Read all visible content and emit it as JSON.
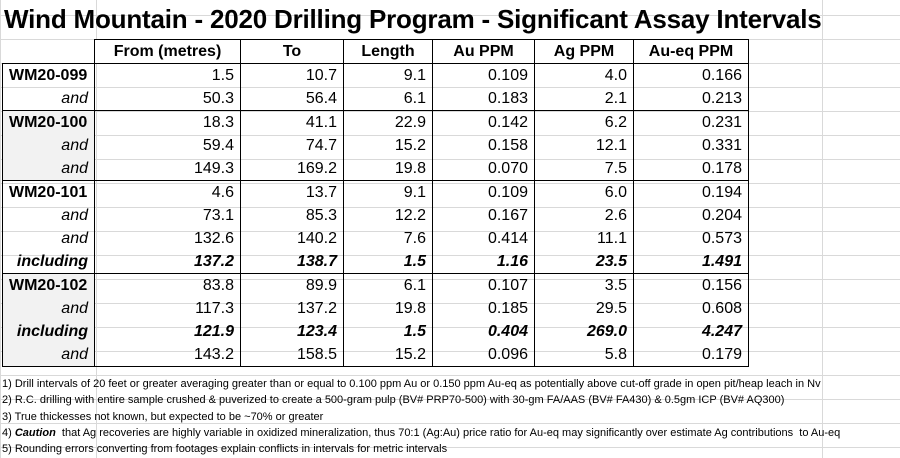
{
  "title": "Wind Mountain - 2020 Drilling Program - Significant Assay Intervals",
  "headers": [
    "",
    "From (metres)",
    "To",
    "Length",
    "Au PPM",
    "Ag PPM",
    "Au-eq PPM"
  ],
  "rows": [
    {
      "label": "WM20-099",
      "kind": "hole",
      "from": "1.5",
      "to": "10.7",
      "length": "9.1",
      "au": "0.109",
      "ag": "4.0",
      "aueq": "0.166"
    },
    {
      "label": "and",
      "kind": "sub",
      "from": "50.3",
      "to": "56.4",
      "length": "6.1",
      "au": "0.183",
      "ag": "2.1",
      "aueq": "0.213"
    },
    {
      "label": "WM20-100",
      "kind": "hole",
      "from": "18.3",
      "to": "41.1",
      "length": "22.9",
      "au": "0.142",
      "ag": "6.2",
      "aueq": "0.231"
    },
    {
      "label": "and",
      "kind": "sub",
      "from": "59.4",
      "to": "74.7",
      "length": "15.2",
      "au": "0.158",
      "ag": "12.1",
      "aueq": "0.331"
    },
    {
      "label": "and",
      "kind": "sub",
      "from": "149.3",
      "to": "169.2",
      "length": "19.8",
      "au": "0.070",
      "ag": "7.5",
      "aueq": "0.178"
    },
    {
      "label": "WM20-101",
      "kind": "hole",
      "from": "4.6",
      "to": "13.7",
      "length": "9.1",
      "au": "0.109",
      "ag": "6.0",
      "aueq": "0.194"
    },
    {
      "label": "and",
      "kind": "sub",
      "from": "73.1",
      "to": "85.3",
      "length": "12.2",
      "au": "0.167",
      "ag": "2.6",
      "aueq": "0.204"
    },
    {
      "label": "and",
      "kind": "sub",
      "from": "132.6",
      "to": "140.2",
      "length": "7.6",
      "au": "0.414",
      "ag": "11.1",
      "aueq": "0.573"
    },
    {
      "label": "including",
      "kind": "inc",
      "from": "137.2",
      "to": "138.7",
      "length": "1.5",
      "au": "1.16",
      "ag": "23.5",
      "aueq": "1.491"
    },
    {
      "label": "WM20-102",
      "kind": "hole",
      "from": "83.8",
      "to": "89.9",
      "length": "6.1",
      "au": "0.107",
      "ag": "3.5",
      "aueq": "0.156"
    },
    {
      "label": "and",
      "kind": "sub",
      "from": "117.3",
      "to": "137.2",
      "length": "19.8",
      "au": "0.185",
      "ag": "29.5",
      "aueq": "0.608"
    },
    {
      "label": "including",
      "kind": "inc",
      "from": "121.9",
      "to": "123.4",
      "length": "1.5",
      "au": "0.404",
      "ag": "269.0",
      "aueq": "4.247"
    },
    {
      "label": "and",
      "kind": "sub",
      "from": "143.2",
      "to": "158.5",
      "length": "15.2",
      "au": "0.096",
      "ag": "5.8",
      "aueq": "0.179"
    }
  ],
  "notes": {
    "n1": "1) Drill intervals of 20 feet or greater averaging greater than or equal to 0.100 ppm Au or 0.150 ppm Au-eq as potentially above cut-off grade in open pit/heap leach in Nv",
    "n2": "2) R.C. drilling with entire sample crushed & puverized to create a 500-gram pulp (BV# PRP70-500) with 30-gm FA/AAS (BV# FA430) & 0.5gm ICP (BV# AQ300)",
    "n3": "3) True thickesses not known, but expected to be ~70% or greater",
    "n4_prefix": "4) ",
    "n4_bold": "Caution",
    "n4_rest": "  that Ag recoveries are highly variable in oxidized mineralization, thus 70:1 (Ag:Au) price ratio for Au-eq may significantly over estimate Ag contributions  to Au-eq",
    "n5": "5) Rounding errors converting from footages explain conflicts in intervals for metric intervals"
  }
}
